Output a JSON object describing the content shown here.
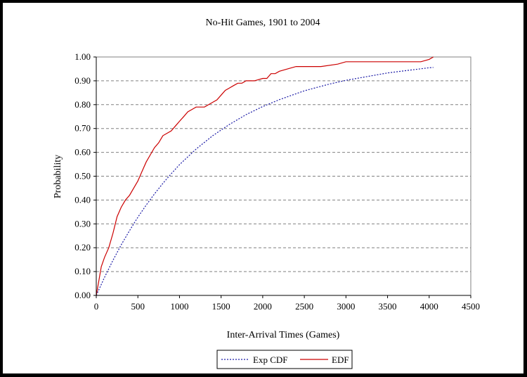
{
  "chart_data": {
    "type": "line",
    "title": "No-Hit Games, 1901 to 2004",
    "xlabel": "Inter-Arrival Times (Games)",
    "ylabel": "Probability",
    "xlim": [
      0,
      4500
    ],
    "ylim": [
      0,
      1
    ],
    "x_ticks": [
      "0",
      "500",
      "1000",
      "1500",
      "2000",
      "2500",
      "3000",
      "3500",
      "4000",
      "4500"
    ],
    "y_ticks": [
      "0.00",
      "0.10",
      "0.20",
      "0.30",
      "0.40",
      "0.50",
      "0.60",
      "0.70",
      "0.80",
      "0.90",
      "1.00"
    ],
    "grid": "horizontal dashed",
    "legend_position": "bottom",
    "series": [
      {
        "name": "Exp CDF",
        "color": "#1a1aa6",
        "style": "dotted",
        "x": [
          0,
          100,
          200,
          300,
          400,
          500,
          600,
          700,
          800,
          900,
          1000,
          1200,
          1400,
          1600,
          1800,
          2000,
          2200,
          2500,
          2800,
          3000,
          3500,
          4000,
          4050
        ],
        "y": [
          0,
          0.076,
          0.147,
          0.212,
          0.272,
          0.328,
          0.379,
          0.426,
          0.47,
          0.51,
          0.548,
          0.614,
          0.67,
          0.717,
          0.758,
          0.792,
          0.821,
          0.858,
          0.886,
          0.902,
          0.933,
          0.955,
          0.956
        ]
      },
      {
        "name": "EDF",
        "color": "#cc0000",
        "style": "solid",
        "x": [
          0,
          30,
          60,
          100,
          150,
          200,
          250,
          300,
          350,
          400,
          450,
          500,
          550,
          600,
          650,
          700,
          750,
          800,
          850,
          900,
          950,
          1000,
          1050,
          1100,
          1150,
          1200,
          1300,
          1400,
          1450,
          1500,
          1550,
          1600,
          1650,
          1700,
          1750,
          1800,
          1900,
          2000,
          2050,
          2100,
          2150,
          2200,
          2300,
          2400,
          2500,
          2700,
          2900,
          3000,
          3500,
          3900,
          4000,
          4050
        ],
        "y": [
          0,
          0.06,
          0.12,
          0.16,
          0.2,
          0.26,
          0.33,
          0.37,
          0.4,
          0.42,
          0.45,
          0.48,
          0.52,
          0.56,
          0.59,
          0.62,
          0.64,
          0.67,
          0.68,
          0.69,
          0.71,
          0.73,
          0.75,
          0.77,
          0.78,
          0.79,
          0.79,
          0.81,
          0.82,
          0.84,
          0.86,
          0.87,
          0.88,
          0.89,
          0.89,
          0.9,
          0.9,
          0.91,
          0.91,
          0.93,
          0.93,
          0.94,
          0.95,
          0.96,
          0.96,
          0.96,
          0.97,
          0.98,
          0.98,
          0.98,
          0.99,
          1.0
        ]
      }
    ]
  }
}
